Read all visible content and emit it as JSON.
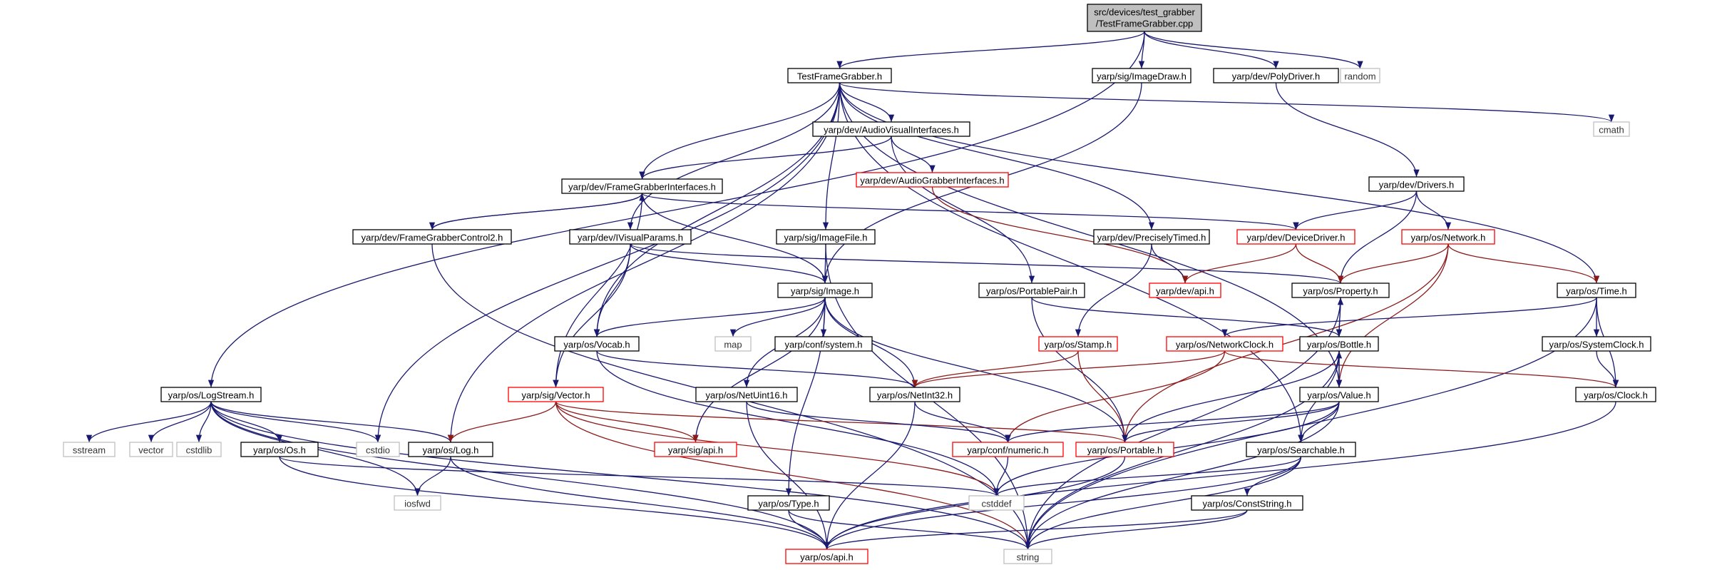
{
  "colors": {
    "edge": "#191970",
    "edge_alt": "#8b1a1a",
    "box_default": "#000000",
    "box_incomplete": "#ff0000",
    "box_system": "#bfbfbf",
    "root_fill": "#bfbfbf"
  },
  "root": {
    "line1": "src/devices/test_grabber",
    "line2": "/TestFrameGrabber.cpp"
  },
  "nodes": [
    {
      "id": "testframegrabber_h",
      "label": "TestFrameGrabber.h",
      "style": "default"
    },
    {
      "id": "imagedraw_h",
      "label": "yarp/sig/ImageDraw.h",
      "style": "default"
    },
    {
      "id": "polydriver_h",
      "label": "yarp/dev/PolyDriver.h",
      "style": "default"
    },
    {
      "id": "random",
      "label": "random",
      "style": "system"
    },
    {
      "id": "cmath",
      "label": "cmath",
      "style": "system"
    },
    {
      "id": "audiovisualinterfaces_h",
      "label": "yarp/dev/AudioVisualInterfaces.h",
      "style": "default"
    },
    {
      "id": "framegrabberinterfaces_h",
      "label": "yarp/dev/FrameGrabberInterfaces.h",
      "style": "default"
    },
    {
      "id": "audiograbberinterfaces_h",
      "label": "yarp/dev/AudioGrabberInterfaces.h",
      "style": "incomplete"
    },
    {
      "id": "drivers_h",
      "label": "yarp/dev/Drivers.h",
      "style": "default"
    },
    {
      "id": "framegrabbercontrol2_h",
      "label": "yarp/dev/FrameGrabberControl2.h",
      "style": "default"
    },
    {
      "id": "ivisualparams_h",
      "label": "yarp/dev/IVisualParams.h",
      "style": "default"
    },
    {
      "id": "imagefile_h",
      "label": "yarp/sig/ImageFile.h",
      "style": "default"
    },
    {
      "id": "preciselytimed_h",
      "label": "yarp/dev/PreciselyTimed.h",
      "style": "default"
    },
    {
      "id": "devicedriver_h",
      "label": "yarp/dev/DeviceDriver.h",
      "style": "incomplete"
    },
    {
      "id": "network_h",
      "label": "yarp/os/Network.h",
      "style": "incomplete"
    },
    {
      "id": "image_h",
      "label": "yarp/sig/Image.h",
      "style": "default"
    },
    {
      "id": "portablepair_h",
      "label": "yarp/os/PortablePair.h",
      "style": "default"
    },
    {
      "id": "dev_api_h",
      "label": "yarp/dev/api.h",
      "style": "incomplete"
    },
    {
      "id": "property_h",
      "label": "yarp/os/Property.h",
      "style": "default"
    },
    {
      "id": "time_h",
      "label": "yarp/os/Time.h",
      "style": "default"
    },
    {
      "id": "map",
      "label": "map",
      "style": "system"
    },
    {
      "id": "system_h",
      "label": "yarp/conf/system.h",
      "style": "default"
    },
    {
      "id": "vocab_h",
      "label": "yarp/os/Vocab.h",
      "style": "default"
    },
    {
      "id": "stamp_h",
      "label": "yarp/os/Stamp.h",
      "style": "incomplete"
    },
    {
      "id": "networkclock_h",
      "label": "yarp/os/NetworkClock.h",
      "style": "incomplete"
    },
    {
      "id": "bottle_h",
      "label": "yarp/os/Bottle.h",
      "style": "default"
    },
    {
      "id": "systemclock_h",
      "label": "yarp/os/SystemClock.h",
      "style": "default"
    },
    {
      "id": "logstream_h",
      "label": "yarp/os/LogStream.h",
      "style": "default"
    },
    {
      "id": "vector_h",
      "label": "yarp/sig/Vector.h",
      "style": "incomplete"
    },
    {
      "id": "netuint16_h",
      "label": "yarp/os/NetUint16.h",
      "style": "default"
    },
    {
      "id": "netint32_h",
      "label": "yarp/os/NetInt32.h",
      "style": "default"
    },
    {
      "id": "value_h",
      "label": "yarp/os/Value.h",
      "style": "default"
    },
    {
      "id": "clock_h",
      "label": "yarp/os/Clock.h",
      "style": "default"
    },
    {
      "id": "sstream",
      "label": "sstream",
      "style": "system"
    },
    {
      "id": "vector",
      "label": "vector",
      "style": "system"
    },
    {
      "id": "cstdlib",
      "label": "cstdlib",
      "style": "system"
    },
    {
      "id": "os_h",
      "label": "yarp/os/Os.h",
      "style": "default"
    },
    {
      "id": "cstdio",
      "label": "cstdio",
      "style": "system"
    },
    {
      "id": "log_h",
      "label": "yarp/os/Log.h",
      "style": "default"
    },
    {
      "id": "sig_api_h",
      "label": "yarp/sig/api.h",
      "style": "incomplete"
    },
    {
      "id": "numeric_h",
      "label": "yarp/conf/numeric.h",
      "style": "incomplete"
    },
    {
      "id": "portable_h",
      "label": "yarp/os/Portable.h",
      "style": "incomplete"
    },
    {
      "id": "searchable_h",
      "label": "yarp/os/Searchable.h",
      "style": "default"
    },
    {
      "id": "iosfwd",
      "label": "iosfwd",
      "style": "system"
    },
    {
      "id": "cstddef",
      "label": "cstddef",
      "style": "system"
    },
    {
      "id": "type_h",
      "label": "yarp/os/Type.h",
      "style": "default"
    },
    {
      "id": "conststring_h",
      "label": "yarp/os/ConstString.h",
      "style": "default"
    },
    {
      "id": "os_api_h",
      "label": "yarp/os/api.h",
      "style": "incomplete"
    },
    {
      "id": "string",
      "label": "string",
      "style": "system"
    }
  ],
  "edges": [
    [
      "root",
      "testframegrabber_h"
    ],
    [
      "root",
      "imagedraw_h"
    ],
    [
      "root",
      "polydriver_h"
    ],
    [
      "root",
      "random"
    ],
    [
      "root",
      "logstream_h"
    ],
    [
      "testframegrabber_h",
      "audiovisualinterfaces_h"
    ],
    [
      "testframegrabber_h",
      "framegrabberinterfaces_h"
    ],
    [
      "testframegrabber_h",
      "ivisualparams_h"
    ],
    [
      "testframegrabber_h",
      "imagefile_h"
    ],
    [
      "testframegrabber_h",
      "preciselytimed_h"
    ],
    [
      "testframegrabber_h",
      "vocab_h"
    ],
    [
      "testframegrabber_h",
      "cstdio"
    ],
    [
      "testframegrabber_h",
      "log_h"
    ],
    [
      "testframegrabber_h",
      "cmath"
    ],
    [
      "testframegrabber_h",
      "time_h"
    ],
    [
      "testframegrabber_h",
      "searchable_h"
    ],
    [
      "testframegrabber_h",
      "value_h"
    ],
    [
      "imagedraw_h",
      "image_h"
    ],
    [
      "polydriver_h",
      "drivers_h"
    ],
    [
      "audiovisualinterfaces_h",
      "framegrabberinterfaces_h"
    ],
    [
      "audiovisualinterfaces_h",
      "audiograbberinterfaces_h"
    ],
    [
      "audiovisualinterfaces_h",
      "portablepair_h"
    ],
    [
      "framegrabberinterfaces_h",
      "framegrabbercontrol2_h"
    ],
    [
      "framegrabberinterfaces_h",
      "image_h"
    ],
    [
      "framegrabberinterfaces_h",
      "devicedriver_h"
    ],
    [
      "framegrabberinterfaces_h",
      "vector_h"
    ],
    [
      "framegrabbercontrol2_h",
      "framegrabberinterfaces_h"
    ],
    [
      "framegrabbercontrol2_h",
      "string"
    ],
    [
      "audiograbberinterfaces_h",
      "dev_api_h"
    ],
    [
      "drivers_h",
      "devicedriver_h"
    ],
    [
      "drivers_h",
      "network_h"
    ],
    [
      "drivers_h",
      "property_h"
    ],
    [
      "ivisualparams_h",
      "image_h"
    ],
    [
      "ivisualparams_h",
      "vocab_h"
    ],
    [
      "ivisualparams_h",
      "vector_h"
    ],
    [
      "ivisualparams_h",
      "property_h"
    ],
    [
      "imagefile_h",
      "image_h"
    ],
    [
      "imagefile_h",
      "string"
    ],
    [
      "preciselytimed_h",
      "dev_api_h"
    ],
    [
      "preciselytimed_h",
      "stamp_h"
    ],
    [
      "devicedriver_h",
      "dev_api_h"
    ],
    [
      "devicedriver_h",
      "property_h"
    ],
    [
      "network_h",
      "property_h"
    ],
    [
      "network_h",
      "time_h"
    ],
    [
      "network_h",
      "value_h"
    ],
    [
      "network_h",
      "portable_h"
    ],
    [
      "image_h",
      "vocab_h"
    ],
    [
      "image_h",
      "map"
    ],
    [
      "image_h",
      "system_h"
    ],
    [
      "image_h",
      "netuint16_h"
    ],
    [
      "image_h",
      "netint32_h"
    ],
    [
      "image_h",
      "portable_h"
    ],
    [
      "image_h",
      "sig_api_h"
    ],
    [
      "image_h",
      "type_h"
    ],
    [
      "portablepair_h",
      "bottle_h"
    ],
    [
      "portablepair_h",
      "portable_h"
    ],
    [
      "property_h",
      "bottle_h"
    ],
    [
      "property_h",
      "string"
    ],
    [
      "time_h",
      "networkclock_h"
    ],
    [
      "time_h",
      "systemclock_h"
    ],
    [
      "time_h",
      "clock_h"
    ],
    [
      "time_h",
      "string"
    ],
    [
      "vocab_h",
      "netint32_h"
    ],
    [
      "vocab_h",
      "cstddef"
    ],
    [
      "stamp_h",
      "netint32_h"
    ],
    [
      "stamp_h",
      "portable_h"
    ],
    [
      "networkclock_h",
      "clock_h"
    ],
    [
      "networkclock_h",
      "netint32_h"
    ],
    [
      "networkclock_h",
      "numeric_h"
    ],
    [
      "bottle_h",
      "property_h"
    ],
    [
      "bottle_h",
      "value_h"
    ],
    [
      "bottle_h",
      "searchable_h"
    ],
    [
      "bottle_h",
      "portable_h"
    ],
    [
      "bottle_h",
      "string"
    ],
    [
      "systemclock_h",
      "clock_h"
    ],
    [
      "logstream_h",
      "sstream"
    ],
    [
      "logstream_h",
      "vector"
    ],
    [
      "logstream_h",
      "cstdlib"
    ],
    [
      "logstream_h",
      "os_h"
    ],
    [
      "logstream_h",
      "cstdio"
    ],
    [
      "logstream_h",
      "log_h"
    ],
    [
      "logstream_h",
      "iosfwd"
    ],
    [
      "logstream_h",
      "os_api_h"
    ],
    [
      "logstream_h",
      "string"
    ],
    [
      "vector_h",
      "log_h"
    ],
    [
      "vector_h",
      "sig_api_h"
    ],
    [
      "vector_h",
      "portable_h"
    ],
    [
      "vector_h",
      "cstddef"
    ],
    [
      "vector_h",
      "string"
    ],
    [
      "netuint16_h",
      "numeric_h"
    ],
    [
      "netuint16_h",
      "os_api_h"
    ],
    [
      "netint32_h",
      "numeric_h"
    ],
    [
      "netint32_h",
      "os_api_h"
    ],
    [
      "value_h",
      "bottle_h"
    ],
    [
      "value_h",
      "searchable_h"
    ],
    [
      "value_h",
      "numeric_h"
    ],
    [
      "value_h",
      "portable_h"
    ],
    [
      "value_h",
      "cstddef"
    ],
    [
      "value_h",
      "string"
    ],
    [
      "clock_h",
      "os_api_h"
    ],
    [
      "os_h",
      "cstddef"
    ],
    [
      "os_h",
      "os_api_h"
    ],
    [
      "log_h",
      "iosfwd"
    ],
    [
      "log_h",
      "os_api_h"
    ],
    [
      "numeric_h",
      "cstddef"
    ],
    [
      "portable_h",
      "os_api_h"
    ],
    [
      "searchable_h",
      "conststring_h"
    ],
    [
      "searchable_h",
      "cstddef"
    ],
    [
      "searchable_h",
      "os_api_h"
    ],
    [
      "searchable_h",
      "string"
    ],
    [
      "type_h",
      "os_api_h"
    ],
    [
      "type_h",
      "string"
    ],
    [
      "conststring_h",
      "os_api_h"
    ],
    [
      "conststring_h",
      "string"
    ]
  ]
}
